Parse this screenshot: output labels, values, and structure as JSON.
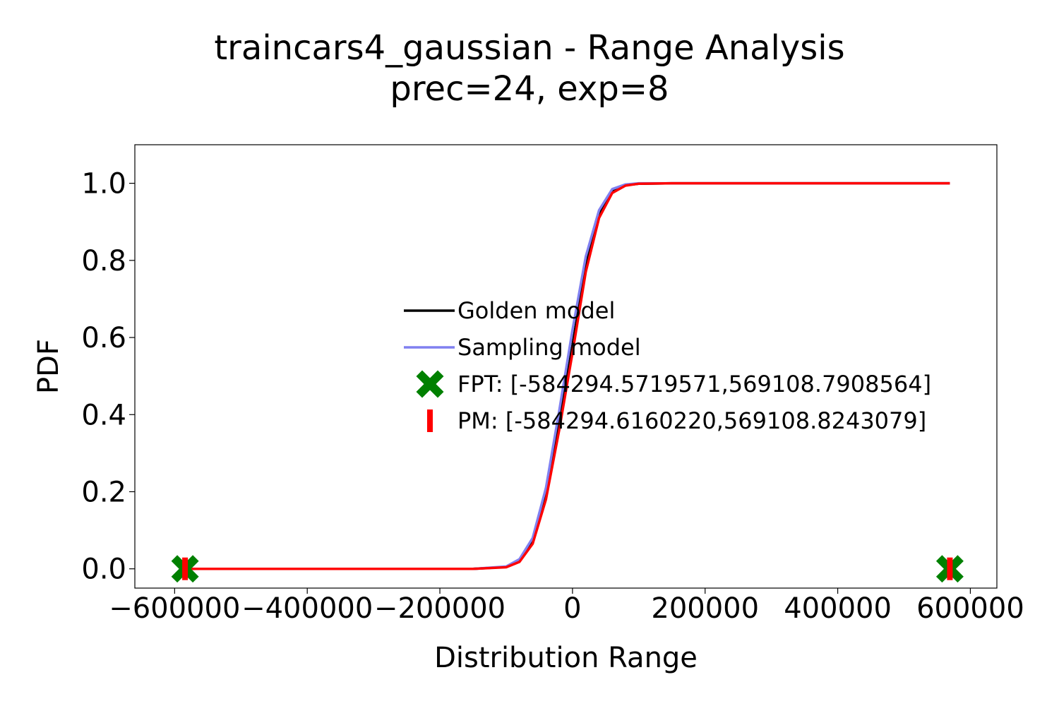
{
  "chart_data": {
    "type": "line",
    "title": "traincars4_gaussian - Range Analysis",
    "subtitle": "prec=24, exp=8",
    "xlabel": "Distribution Range",
    "ylabel": "PDF",
    "xlim": [
      -660000,
      640000
    ],
    "ylim": [
      -0.05,
      1.1
    ],
    "x_ticks": [
      -600000,
      -400000,
      -200000,
      0,
      200000,
      400000,
      600000
    ],
    "x_tick_labels": [
      "−600000",
      "−400000",
      "−200000",
      "0",
      "200000",
      "400000",
      "600000"
    ],
    "y_ticks": [
      0.0,
      0.2,
      0.4,
      0.6,
      0.8,
      1.0
    ],
    "y_tick_labels": [
      "0.0",
      "0.2",
      "0.4",
      "0.6",
      "0.8",
      "1.0"
    ],
    "grid": false,
    "legend_position": "center-right",
    "series": [
      {
        "name": "Golden model",
        "color": "#000000",
        "x": [
          -584294.57,
          -300000,
          -150000,
          -100000,
          -80000,
          -60000,
          -40000,
          -20000,
          0,
          20000,
          40000,
          60000,
          80000,
          100000,
          150000,
          569108.79
        ],
        "y": [
          0.0,
          0.0,
          0.0,
          0.005,
          0.02,
          0.07,
          0.19,
          0.38,
          0.58,
          0.79,
          0.92,
          0.98,
          0.995,
          0.999,
          1.0,
          1.0
        ]
      },
      {
        "name": "Sampling model",
        "color": "#8080f0",
        "x": [
          -584294.57,
          -300000,
          -150000,
          -100000,
          -80000,
          -60000,
          -40000,
          -20000,
          0,
          20000,
          40000,
          60000,
          80000,
          100000,
          150000,
          569108.79
        ],
        "y": [
          0.0,
          0.0,
          0.0,
          0.006,
          0.025,
          0.08,
          0.21,
          0.41,
          0.62,
          0.81,
          0.93,
          0.985,
          0.997,
          1.0,
          1.0,
          1.0
        ]
      },
      {
        "name": "",
        "color": "#ff0000",
        "x": [
          -584294.57,
          -300000,
          -150000,
          -100000,
          -80000,
          -60000,
          -40000,
          -20000,
          0,
          20000,
          40000,
          60000,
          80000,
          100000,
          150000,
          569108.79
        ],
        "y": [
          0.0,
          0.0,
          0.0,
          0.004,
          0.018,
          0.065,
          0.18,
          0.36,
          0.56,
          0.77,
          0.91,
          0.975,
          0.994,
          0.999,
          1.0,
          1.0
        ]
      }
    ],
    "markers": [
      {
        "name": "FPT: [-584294.5719571,569108.7908564]",
        "color": "#008000",
        "symbol": "x",
        "x": [
          -584294.5719571,
          569108.7908564
        ],
        "y": [
          0.0,
          0.0
        ]
      },
      {
        "name": "PM: [-584294.6160220,569108.8243079]",
        "color": "#ff0000",
        "symbol": "|",
        "x": [
          -584294.616022,
          569108.8243079
        ],
        "y": [
          0.0,
          0.0
        ]
      }
    ]
  }
}
